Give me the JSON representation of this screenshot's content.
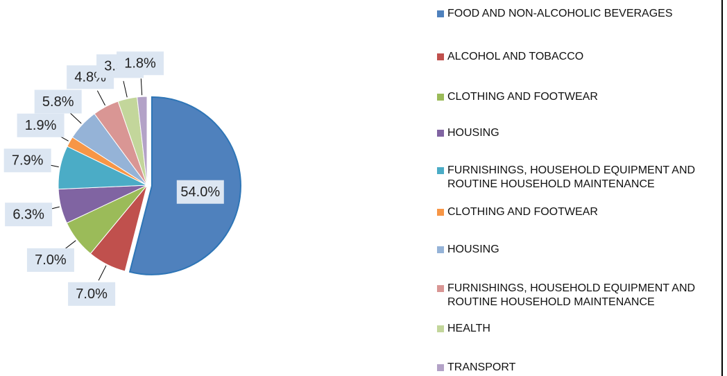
{
  "chart_data": {
    "type": "pie",
    "categories": [
      "FOOD AND NON-ALCOHOLIC BEVERAGES",
      "ALCOHOL AND TOBACCO",
      "CLOTHING AND FOOTWEAR",
      "HOUSING",
      "FURNISHINGS, HOUSEHOLD EQUIPMENT AND ROUTINE HOUSEHOLD MAINTENANCE",
      "CLOTHING AND FOOTWEAR",
      "HOUSING",
      "FURNISHINGS, HOUSEHOLD EQUIPMENT AND ROUTINE HOUSEHOLD MAINTENANCE",
      "HEALTH",
      "TRANSPORT"
    ],
    "values": [
      54.0,
      7.0,
      7.0,
      6.3,
      7.9,
      1.9,
      5.8,
      4.8,
      3.5,
      1.8
    ],
    "value_labels": [
      "54.0%",
      "7.0%",
      "7.0%",
      "6.3%",
      "7.9%",
      "1.9%",
      "5.8%",
      "4.8%",
      "3.5%",
      "1.8%"
    ],
    "colors": [
      "#4f81bd",
      "#c0504d",
      "#9bbb59",
      "#8064a2",
      "#4bacc6",
      "#f79646",
      "#95b3d7",
      "#d99694",
      "#c3d69b",
      "#b3a2c7"
    ],
    "legend": "right"
  }
}
